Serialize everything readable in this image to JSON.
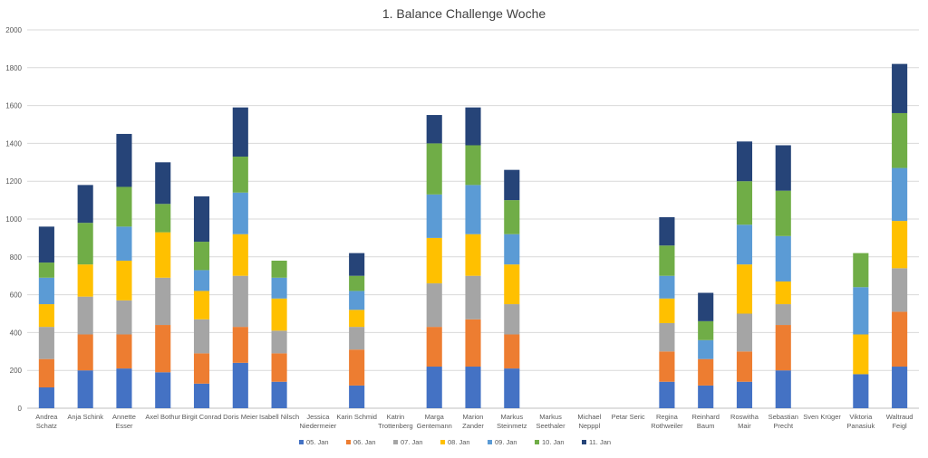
{
  "chart_data": {
    "type": "bar",
    "stacked": true,
    "title": "1. Balance Challenge Woche",
    "xlabel": "",
    "ylabel": "",
    "ylim": [
      0,
      2000
    ],
    "yticks": [
      0,
      200,
      400,
      600,
      800,
      1000,
      1200,
      1400,
      1600,
      1800,
      2000
    ],
    "grid": true,
    "legend_position": "bottom",
    "categories": [
      [
        "Andrea",
        "Schatz"
      ],
      [
        "Anja Schink"
      ],
      [
        "Annette",
        "Esser"
      ],
      [
        "Axel Bothur"
      ],
      [
        "Birgit Conrad"
      ],
      [
        "Doris Meier"
      ],
      [
        "Isabell Nilsch"
      ],
      [
        "Jessica",
        "Niedermeier"
      ],
      [
        "Karin Schmid"
      ],
      [
        "Katrin",
        "Trottenberg"
      ],
      [
        "Marga",
        "Gentemann"
      ],
      [
        "Marion",
        "Zander"
      ],
      [
        "Markus",
        "Steinmetz"
      ],
      [
        "Markus",
        "Seethaler"
      ],
      [
        "Michael",
        "Nepppl"
      ],
      [
        "Petar Seric"
      ],
      [
        "Regina",
        "Rothweiler"
      ],
      [
        "Reinhard",
        "Baum"
      ],
      [
        "Roswitha",
        "Mair"
      ],
      [
        "Sebastian",
        "Precht"
      ],
      [
        "Sven Krüger"
      ],
      [
        "Viktoria",
        "Panasiuk"
      ],
      [
        "Waltraud",
        "Feigl"
      ]
    ],
    "series": [
      {
        "name": "05. Jan",
        "color": "#4472C4",
        "values": [
          110,
          200,
          210,
          190,
          130,
          240,
          140,
          0,
          120,
          0,
          220,
          220,
          210,
          0,
          0,
          0,
          140,
          120,
          140,
          200,
          0,
          180,
          220
        ]
      },
      {
        "name": "06. Jan",
        "color": "#ED7D31",
        "values": [
          150,
          190,
          180,
          250,
          160,
          190,
          150,
          0,
          190,
          0,
          210,
          250,
          180,
          0,
          0,
          0,
          160,
          140,
          160,
          240,
          0,
          0,
          290
        ]
      },
      {
        "name": "07. Jan",
        "color": "#A5A5A5",
        "values": [
          170,
          200,
          180,
          250,
          180,
          270,
          120,
          0,
          120,
          0,
          230,
          230,
          160,
          0,
          0,
          0,
          150,
          0,
          200,
          110,
          0,
          0,
          230
        ]
      },
      {
        "name": "08. Jan",
        "color": "#FFC000",
        "values": [
          120,
          170,
          210,
          240,
          150,
          220,
          170,
          0,
          90,
          0,
          240,
          220,
          210,
          0,
          0,
          0,
          130,
          0,
          260,
          120,
          0,
          210,
          250
        ]
      },
      {
        "name": "09. Jan",
        "color": "#5B9BD5",
        "values": [
          140,
          0,
          180,
          0,
          110,
          220,
          110,
          0,
          100,
          0,
          230,
          260,
          160,
          0,
          0,
          0,
          120,
          100,
          210,
          240,
          0,
          250,
          280
        ]
      },
      {
        "name": "10. Jan",
        "color": "#70AD47",
        "values": [
          80,
          220,
          210,
          150,
          150,
          190,
          90,
          0,
          80,
          0,
          270,
          210,
          180,
          0,
          0,
          0,
          160,
          100,
          230,
          240,
          0,
          180,
          290
        ]
      },
      {
        "name": "11. Jan",
        "color": "#264478",
        "values": [
          190,
          200,
          280,
          220,
          240,
          260,
          0,
          0,
          120,
          0,
          150,
          200,
          160,
          0,
          0,
          0,
          150,
          150,
          210,
          240,
          0,
          0,
          260
        ]
      }
    ]
  }
}
